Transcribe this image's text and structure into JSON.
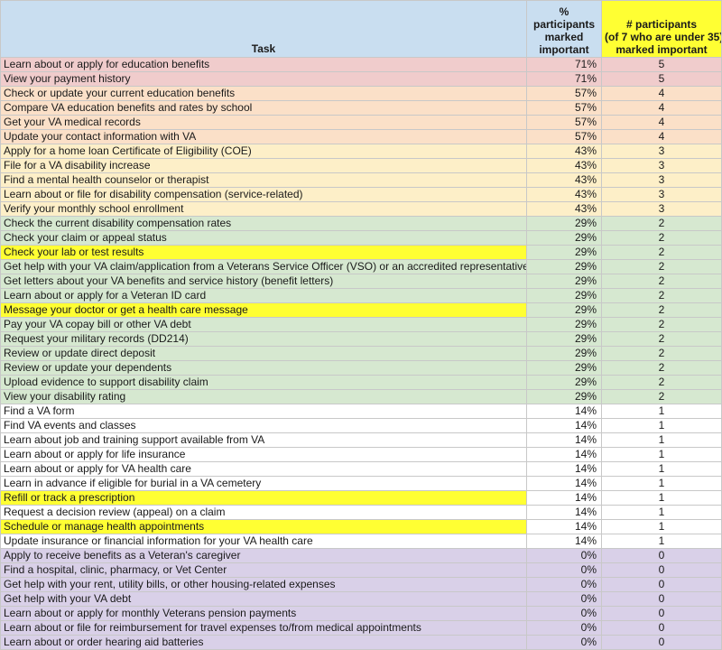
{
  "header": {
    "task": "Task",
    "pct_line1": "%",
    "pct_line2": "participants",
    "pct_line3": "marked",
    "pct_line4": "important",
    "cnt_line1": "# participants",
    "cnt_line2": "(of 7 who are under 35)",
    "cnt_line3": "marked important"
  },
  "colors": {
    "header_blue": "#c9def0",
    "highlight_yellow": "#ffff33",
    "group_71": "#f0cccc",
    "group_57": "#fbe0c8",
    "group_43": "#fdefc8",
    "group_29": "#d6e8d0",
    "group_14": "#ffffff",
    "group_0": "#d9d0e8"
  },
  "rows": [
    {
      "task": "Learn about or apply for education benefits",
      "pct": "71%",
      "count": "5",
      "group": "red",
      "highlight": false
    },
    {
      "task": "View your payment history",
      "pct": "71%",
      "count": "5",
      "group": "red",
      "highlight": false
    },
    {
      "task": "Check or update your current education benefits",
      "pct": "57%",
      "count": "4",
      "group": "orange",
      "highlight": false
    },
    {
      "task": "Compare VA education benefits and rates by school",
      "pct": "57%",
      "count": "4",
      "group": "orange",
      "highlight": false
    },
    {
      "task": "Get your VA medical records",
      "pct": "57%",
      "count": "4",
      "group": "orange",
      "highlight": false
    },
    {
      "task": "Update your contact information with VA",
      "pct": "57%",
      "count": "4",
      "group": "orange",
      "highlight": false
    },
    {
      "task": "Apply for a home loan Certificate of Eligibility (COE)",
      "pct": "43%",
      "count": "3",
      "group": "yellowish",
      "highlight": false
    },
    {
      "task": "File for a VA disability increase",
      "pct": "43%",
      "count": "3",
      "group": "yellowish",
      "highlight": false
    },
    {
      "task": "Find a mental health counselor or therapist",
      "pct": "43%",
      "count": "3",
      "group": "yellowish",
      "highlight": false
    },
    {
      "task": "Learn about or file for disability compensation (service-related)",
      "pct": "43%",
      "count": "3",
      "group": "yellowish",
      "highlight": false
    },
    {
      "task": "Verify your monthly school enrollment",
      "pct": "43%",
      "count": "3",
      "group": "yellowish",
      "highlight": false
    },
    {
      "task": "Check the current disability compensation rates",
      "pct": "29%",
      "count": "2",
      "group": "green",
      "highlight": false
    },
    {
      "task": "Check your claim or appeal status",
      "pct": "29%",
      "count": "2",
      "group": "green",
      "highlight": false
    },
    {
      "task": "Check your lab or test results",
      "pct": "29%",
      "count": "2",
      "group": "green",
      "highlight": true
    },
    {
      "task": "Get help with your VA claim/application from a Veterans Service Officer (VSO) or an accredited representative",
      "pct": "29%",
      "count": "2",
      "group": "green",
      "highlight": false
    },
    {
      "task": "Get letters about your VA benefits and service history (benefit letters)",
      "pct": "29%",
      "count": "2",
      "group": "green",
      "highlight": false
    },
    {
      "task": "Learn about or apply for a Veteran ID card",
      "pct": "29%",
      "count": "2",
      "group": "green",
      "highlight": false
    },
    {
      "task": "Message your doctor or get a health care message",
      "pct": "29%",
      "count": "2",
      "group": "green",
      "highlight": true
    },
    {
      "task": "Pay your VA copay bill or other VA debt",
      "pct": "29%",
      "count": "2",
      "group": "green",
      "highlight": false
    },
    {
      "task": "Request your military records (DD214)",
      "pct": "29%",
      "count": "2",
      "group": "green",
      "highlight": false
    },
    {
      "task": "Review or update direct deposit",
      "pct": "29%",
      "count": "2",
      "group": "green",
      "highlight": false
    },
    {
      "task": "Review or update your dependents",
      "pct": "29%",
      "count": "2",
      "group": "green",
      "highlight": false
    },
    {
      "task": "Upload evidence to support disability claim",
      "pct": "29%",
      "count": "2",
      "group": "green",
      "highlight": false
    },
    {
      "task": "View your disability rating",
      "pct": "29%",
      "count": "2",
      "group": "green",
      "highlight": false
    },
    {
      "task": "Find a VA form",
      "pct": "14%",
      "count": "1",
      "group": "white",
      "highlight": false
    },
    {
      "task": "Find VA events and classes",
      "pct": "14%",
      "count": "1",
      "group": "white",
      "highlight": false
    },
    {
      "task": "Learn about job and training support available from VA",
      "pct": "14%",
      "count": "1",
      "group": "white",
      "highlight": false
    },
    {
      "task": "Learn about or apply for life insurance",
      "pct": "14%",
      "count": "1",
      "group": "white",
      "highlight": false
    },
    {
      "task": "Learn about or apply for VA health care",
      "pct": "14%",
      "count": "1",
      "group": "white",
      "highlight": false
    },
    {
      "task": "Learn in advance if eligible for burial in a VA cemetery",
      "pct": "14%",
      "count": "1",
      "group": "white",
      "highlight": false
    },
    {
      "task": "Refill or track a prescription",
      "pct": "14%",
      "count": "1",
      "group": "white",
      "highlight": true
    },
    {
      "task": "Request a decision review (appeal) on a claim",
      "pct": "14%",
      "count": "1",
      "group": "white",
      "highlight": false
    },
    {
      "task": "Schedule or manage health appointments",
      "pct": "14%",
      "count": "1",
      "group": "white",
      "highlight": true
    },
    {
      "task": "Update insurance or financial information for your VA health care",
      "pct": "14%",
      "count": "1",
      "group": "white",
      "highlight": false
    },
    {
      "task": "Apply to receive benefits as a Veteran's caregiver",
      "pct": "0%",
      "count": "0",
      "group": "purple",
      "highlight": false
    },
    {
      "task": "Find a hospital, clinic, pharmacy, or Vet Center",
      "pct": "0%",
      "count": "0",
      "group": "purple",
      "highlight": false
    },
    {
      "task": "Get help with your rent, utility bills, or other housing-related expenses",
      "pct": "0%",
      "count": "0",
      "group": "purple",
      "highlight": false
    },
    {
      "task": "Get help with your VA debt",
      "pct": "0%",
      "count": "0",
      "group": "purple",
      "highlight": false
    },
    {
      "task": "Learn about or apply for monthly Veterans pension payments",
      "pct": "0%",
      "count": "0",
      "group": "purple",
      "highlight": false
    },
    {
      "task": "Learn about or file for reimbursement for travel expenses to/from medical appointments",
      "pct": "0%",
      "count": "0",
      "group": "purple",
      "highlight": false
    },
    {
      "task": "Learn about or order hearing aid batteries",
      "pct": "0%",
      "count": "0",
      "group": "purple",
      "highlight": false
    }
  ]
}
